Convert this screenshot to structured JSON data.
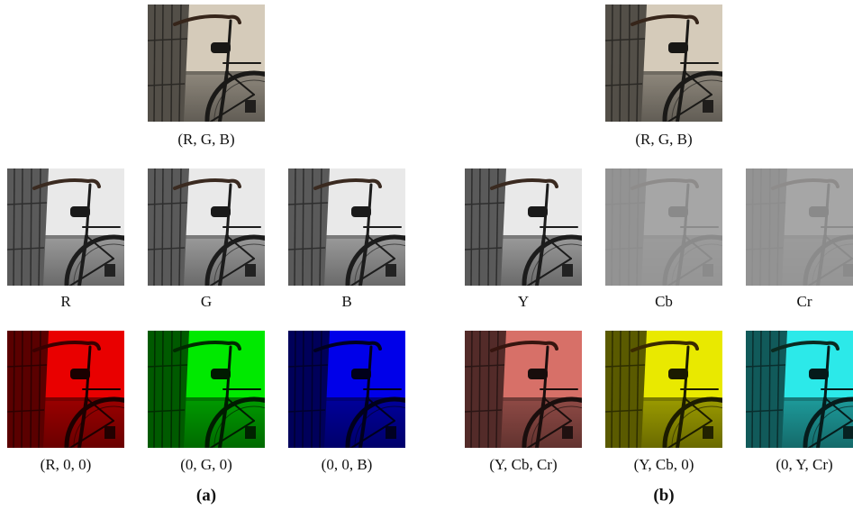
{
  "panels": [
    {
      "label": "(a)",
      "top_caption": "(R, G, B)",
      "row1": [
        "R",
        "G",
        "B"
      ],
      "row2": [
        "(R, 0, 0)",
        "(0, G, 0)",
        "(0, 0, B)"
      ]
    },
    {
      "label": "(b)",
      "top_caption": "(R, G, B)",
      "row1": [
        "Y",
        "Cb",
        "Cr"
      ],
      "row2": [
        "(Y, Cb, Cr)",
        "(Y, Cb, 0)",
        "(0, Y, Cr)"
      ]
    }
  ]
}
